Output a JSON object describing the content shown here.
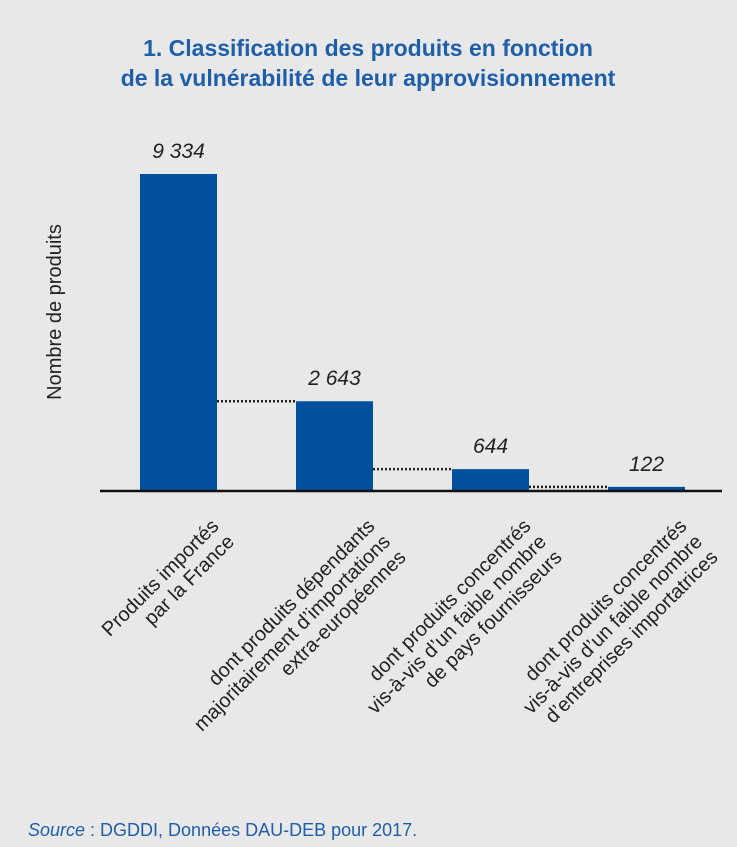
{
  "chart_data": {
    "type": "bar",
    "title": [
      "1. Classification des produits en fonction",
      "de la vulnérabilité de leur approvisionnement"
    ],
    "ylabel": "Nombre de produits",
    "xlabel": "",
    "categories": [
      [
        "Produits importés",
        "par la France"
      ],
      [
        "dont produits dépendants",
        "majoritairement d’importations",
        "extra-européennes"
      ],
      [
        "dont produits concentrés",
        "vis-à-vis d’un faible nombre",
        "de pays fournisseurs"
      ],
      [
        "dont produits concentrés",
        "vis-à-vis d’un faible nombre",
        "d’entreprises importatrices"
      ]
    ],
    "values": [
      9334,
      2643,
      644,
      122
    ],
    "value_labels": [
      "9 334",
      "2 643",
      "644",
      "122"
    ],
    "ylim": [
      0,
      9334
    ],
    "grid": false,
    "connectors": "dotted",
    "bar_color": "#00509e"
  },
  "source": {
    "label": "Source",
    "text": " : DGDDI, Données DAU-DEB pour 2017."
  }
}
